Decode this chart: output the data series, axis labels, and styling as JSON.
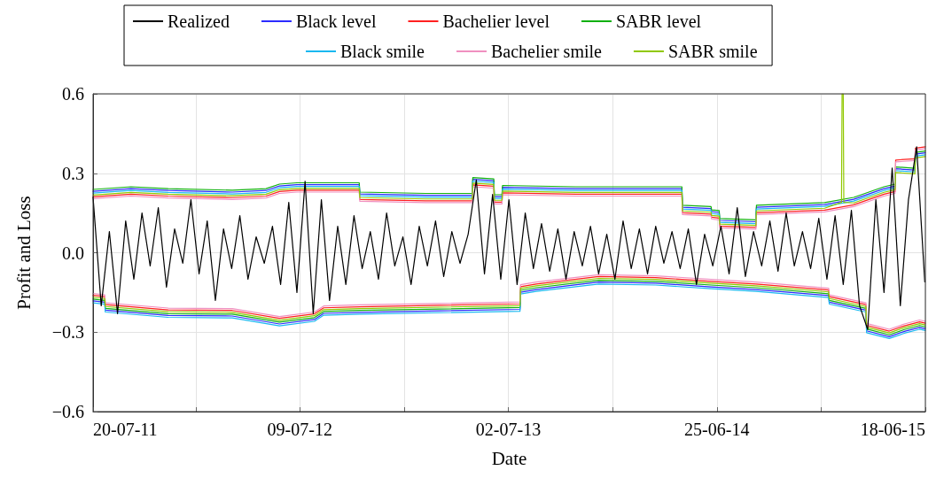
{
  "chart_data": {
    "type": "line",
    "xlabel": "Date",
    "ylabel": "Profit and Loss",
    "legend": "top",
    "grid": true,
    "marker": "none",
    "line_style": "solid",
    "xlim": [
      "2011-07-20",
      "2015-06-18"
    ],
    "xticks": [
      {
        "value": "2011-07-20",
        "label": "20-07-11"
      },
      {
        "value": "2012-01-13",
        "label": null
      },
      {
        "value": "2012-07-09",
        "label": "09-07-12"
      },
      {
        "value": "2013-01-04",
        "label": null
      },
      {
        "value": "2013-07-02",
        "label": "02-07-13"
      },
      {
        "value": "2013-12-28",
        "label": null
      },
      {
        "value": "2014-06-25",
        "label": "25-06-14"
      },
      {
        "value": "2014-12-21",
        "label": null
      },
      {
        "value": "2015-06-18",
        "label": "18-06-15"
      }
    ],
    "ylim": [
      -0.6,
      0.6
    ],
    "yticks": [
      {
        "value": -0.6,
        "label": "−0.6"
      },
      {
        "value": -0.3,
        "label": "−0.3"
      },
      {
        "value": 0,
        "label": "0.0"
      },
      {
        "value": 0.3,
        "label": "0.3"
      },
      {
        "value": 0.6,
        "label": "0.6"
      }
    ],
    "x": [
      "2011-07-20",
      "2011-09-23",
      "2011-11-26",
      "2012-03-15",
      "2012-05-12",
      "2012-06-04",
      "2012-07-04",
      "2012-10-03",
      "2012-10-19",
      "2012-10-20",
      "2013-02-10",
      "2013-05-01",
      "2013-05-02",
      "2013-06-07",
      "2013-06-08",
      "2013-06-21",
      "2013-06-22",
      "2013-10-26",
      "2014-03-12",
      "2014-04-26",
      "2014-04-27",
      "2014-06-15",
      "2014-06-16",
      "2014-06-29",
      "2014-06-30",
      "2014-08-31",
      "2014-09-01",
      "2014-12-27",
      "2015-02-15",
      "2015-04-08",
      "2015-04-27",
      "2015-04-28",
      "2015-05-31",
      "2015-06-01",
      "2015-06-18"
    ],
    "series": [
      {
        "name": "Realized",
        "color": "#000000",
        "x": [
          "2011-07-20",
          "2011-08-03",
          "2011-08-17",
          "2011-08-31",
          "2011-09-14",
          "2011-09-28",
          "2011-10-12",
          "2011-10-26",
          "2011-11-09",
          "2011-11-23",
          "2011-12-07",
          "2011-12-21",
          "2012-01-04",
          "2012-01-18",
          "2012-02-01",
          "2012-02-15",
          "2012-02-29",
          "2012-03-14",
          "2012-03-28",
          "2012-04-11",
          "2012-04-25",
          "2012-05-09",
          "2012-05-23",
          "2012-06-06",
          "2012-06-20",
          "2012-07-04",
          "2012-07-18",
          "2012-08-01",
          "2012-08-15",
          "2012-08-29",
          "2012-09-12",
          "2012-09-26",
          "2012-10-10",
          "2012-10-24",
          "2012-11-07",
          "2012-11-21",
          "2012-12-05",
          "2012-12-19",
          "2013-01-02",
          "2013-01-16",
          "2013-01-30",
          "2013-02-13",
          "2013-02-27",
          "2013-03-13",
          "2013-03-27",
          "2013-04-10",
          "2013-04-24",
          "2013-05-08",
          "2013-05-22",
          "2013-06-05",
          "2013-06-19",
          "2013-07-03",
          "2013-07-17",
          "2013-07-31",
          "2013-08-14",
          "2013-08-28",
          "2013-09-11",
          "2013-09-25",
          "2013-10-09",
          "2013-10-23",
          "2013-11-06",
          "2013-11-20",
          "2013-12-04",
          "2013-12-18",
          "2014-01-01",
          "2014-01-15",
          "2014-01-29",
          "2014-02-12",
          "2014-02-26",
          "2014-03-12",
          "2014-03-26",
          "2014-04-09",
          "2014-04-23",
          "2014-05-07",
          "2014-05-21",
          "2014-06-04",
          "2014-06-18",
          "2014-07-02",
          "2014-07-16",
          "2014-07-30",
          "2014-08-13",
          "2014-08-27",
          "2014-09-10",
          "2014-09-24",
          "2014-10-08",
          "2014-10-22",
          "2014-11-05",
          "2014-11-19",
          "2014-12-03",
          "2014-12-17",
          "2014-12-31",
          "2015-01-14",
          "2015-01-28",
          "2015-02-11",
          "2015-02-25",
          "2015-03-11",
          "2015-03-25",
          "2015-04-08",
          "2015-04-22",
          "2015-05-06",
          "2015-05-20",
          "2015-06-03",
          "2015-06-17"
        ],
        "values": [
          0.21,
          -0.2,
          0.08,
          -0.23,
          0.12,
          -0.1,
          0.15,
          -0.05,
          0.17,
          -0.13,
          0.09,
          -0.04,
          0.2,
          -0.08,
          0.12,
          -0.18,
          0.09,
          -0.06,
          0.14,
          -0.1,
          0.06,
          -0.04,
          0.1,
          -0.12,
          0.19,
          -0.15,
          0.27,
          -0.23,
          0.2,
          -0.18,
          0.1,
          -0.12,
          0.14,
          -0.06,
          0.08,
          -0.1,
          0.15,
          -0.05,
          0.06,
          -0.12,
          0.1,
          -0.05,
          0.12,
          -0.09,
          0.08,
          -0.04,
          0.07,
          0.275,
          -0.08,
          0.22,
          -0.1,
          0.2,
          -0.12,
          0.15,
          -0.06,
          0.11,
          -0.07,
          0.09,
          -0.1,
          0.08,
          -0.05,
          0.1,
          -0.08,
          0.07,
          -0.1,
          0.12,
          -0.06,
          0.09,
          -0.08,
          0.1,
          -0.04,
          0.08,
          -0.06,
          0.09,
          -0.12,
          0.07,
          -0.05,
          0.1,
          -0.08,
          0.17,
          -0.09,
          0.08,
          -0.05,
          0.12,
          -0.07,
          0.15,
          -0.05,
          0.08,
          -0.06,
          0.13,
          -0.1,
          0.14,
          -0.12,
          0.16,
          -0.2,
          -0.29,
          0.2,
          -0.15,
          0.32,
          -0.2,
          0.2,
          0.4,
          -0.11
        ]
      },
      {
        "name": "Black level",
        "color": "#2b2bff",
        "values": [
          0.232,
          0.242,
          0.235,
          0.229,
          0.235,
          0.252,
          0.257,
          0.257,
          0.257,
          0.222,
          0.217,
          0.217,
          0.277,
          0.272,
          0.212,
          0.212,
          0.247,
          0.242,
          0.242,
          0.242,
          0.172,
          0.167,
          0.155,
          0.152,
          0.122,
          0.117,
          0.172,
          0.182,
          0.202,
          0.242,
          0.252,
          0.317,
          0.312,
          0.372,
          0.377
        ]
      },
      {
        "name": "Bachelier level",
        "color": "#ff2020",
        "values": [
          0.211,
          0.221,
          0.214,
          0.208,
          0.214,
          0.231,
          0.236,
          0.236,
          0.236,
          0.201,
          0.196,
          0.196,
          0.256,
          0.251,
          0.191,
          0.191,
          0.226,
          0.221,
          0.221,
          0.221,
          0.151,
          0.146,
          0.134,
          0.131,
          0.101,
          0.096,
          0.151,
          0.161,
          0.181,
          0.221,
          0.231,
          0.35,
          0.355,
          0.395,
          0.4
        ]
      },
      {
        "name": "SABR level",
        "color": "#10b010",
        "values": [
          0.239,
          0.249,
          0.242,
          0.236,
          0.242,
          0.259,
          0.264,
          0.264,
          0.264,
          0.229,
          0.224,
          0.224,
          0.284,
          0.279,
          0.219,
          0.219,
          0.254,
          0.249,
          0.249,
          0.249,
          0.179,
          0.174,
          0.162,
          0.159,
          0.129,
          0.124,
          0.179,
          0.189,
          0.209,
          0.249,
          0.259,
          0.324,
          0.319,
          0.379,
          0.384
        ]
      },
      {
        "name": "Black smile",
        "color": "#1ab8f0",
        "values": [
          0.225,
          0.235,
          0.228,
          0.222,
          0.228,
          0.245,
          0.25,
          0.25,
          0.25,
          0.215,
          0.21,
          0.21,
          0.27,
          0.265,
          0.205,
          0.205,
          0.24,
          0.235,
          0.235,
          0.235,
          0.165,
          0.16,
          0.148,
          0.145,
          0.115,
          0.11,
          0.165,
          0.175,
          0.195,
          0.235,
          0.245,
          0.31,
          0.305,
          0.365,
          0.37
        ]
      },
      {
        "name": "Bachelier smile",
        "color": "#f090c0",
        "values": [
          0.204,
          0.214,
          0.207,
          0.201,
          0.207,
          0.224,
          0.229,
          0.229,
          0.229,
          0.194,
          0.189,
          0.189,
          0.249,
          0.244,
          0.184,
          0.184,
          0.219,
          0.214,
          0.214,
          0.214,
          0.144,
          0.139,
          0.127,
          0.124,
          0.094,
          0.089,
          0.144,
          0.154,
          0.174,
          0.214,
          0.224,
          0.343,
          0.348,
          0.388,
          0.393
        ]
      },
      {
        "name": "SABR smile",
        "color": "#90c800",
        "x": [
          "2011-07-20",
          "2011-09-23",
          "2011-11-26",
          "2012-03-15",
          "2012-05-12",
          "2012-06-04",
          "2012-07-04",
          "2012-10-03",
          "2012-10-19",
          "2012-10-20",
          "2013-02-10",
          "2013-05-01",
          "2013-05-02",
          "2013-06-07",
          "2013-06-08",
          "2013-06-21",
          "2013-06-22",
          "2013-10-26",
          "2014-03-12",
          "2014-04-26",
          "2014-04-27",
          "2014-06-15",
          "2014-06-16",
          "2014-06-29",
          "2014-06-30",
          "2014-08-31",
          "2014-09-01",
          "2014-12-27",
          "2015-01-25",
          "2015-01-26",
          "2015-01-28",
          "2015-01-29",
          "2015-02-15",
          "2015-04-08",
          "2015-04-27",
          "2015-04-28",
          "2015-05-31",
          "2015-06-01",
          "2015-06-18"
        ],
        "values": [
          0.218,
          0.228,
          0.221,
          0.215,
          0.221,
          0.238,
          0.243,
          0.243,
          0.243,
          0.208,
          0.203,
          0.203,
          0.263,
          0.258,
          0.198,
          0.198,
          0.233,
          0.228,
          0.228,
          0.228,
          0.158,
          0.153,
          0.141,
          0.138,
          0.108,
          0.103,
          0.158,
          0.168,
          0.19,
          0.6,
          0.6,
          0.19,
          0.188,
          0.228,
          0.238,
          0.303,
          0.298,
          0.358,
          0.363
        ]
      },
      {
        "color": "#2b2bff",
        "x": [
          "2011-07-20",
          "2011-08-09",
          "2011-08-10",
          "2011-11-26",
          "2012-03-15",
          "2012-06-04",
          "2012-08-03",
          "2012-08-19",
          "2012-10-20",
          "2013-07-22",
          "2013-07-23",
          "2013-08-19",
          "2013-12-04",
          "2014-03-12",
          "2014-06-15",
          "2014-08-31",
          "2015-01-03",
          "2015-01-04",
          "2015-03-08",
          "2015-03-09",
          "2015-04-17",
          "2015-05-13",
          "2015-06-08",
          "2015-06-18"
        ],
        "values": [
          -0.182,
          -0.187,
          -0.217,
          -0.237,
          -0.239,
          -0.269,
          -0.252,
          -0.229,
          -0.225,
          -0.214,
          -0.149,
          -0.139,
          -0.111,
          -0.115,
          -0.129,
          -0.139,
          -0.162,
          -0.187,
          -0.217,
          -0.295,
          -0.317,
          -0.297,
          -0.282,
          -0.287
        ]
      },
      {
        "color": "#ff2020",
        "x": [
          "2011-07-20",
          "2011-08-09",
          "2011-08-10",
          "2011-11-26",
          "2012-03-15",
          "2012-06-04",
          "2012-08-03",
          "2012-08-19",
          "2012-10-20",
          "2013-07-22",
          "2013-07-23",
          "2013-08-19",
          "2013-12-04",
          "2014-03-12",
          "2014-06-15",
          "2014-08-31",
          "2015-01-03",
          "2015-01-04",
          "2015-03-08",
          "2015-03-09",
          "2015-04-17",
          "2015-05-13",
          "2015-06-08",
          "2015-06-18"
        ],
        "values": [
          -0.161,
          -0.166,
          -0.196,
          -0.216,
          -0.218,
          -0.248,
          -0.231,
          -0.208,
          -0.204,
          -0.193,
          -0.128,
          -0.118,
          -0.09,
          -0.094,
          -0.108,
          -0.118,
          -0.141,
          -0.166,
          -0.196,
          -0.274,
          -0.296,
          -0.276,
          -0.261,
          -0.266
        ]
      },
      {
        "color": "#10b010",
        "x": [
          "2011-07-20",
          "2011-08-09",
          "2011-08-10",
          "2011-11-26",
          "2012-03-15",
          "2012-06-04",
          "2012-08-03",
          "2012-08-19",
          "2012-10-20",
          "2013-07-22",
          "2013-07-23",
          "2013-08-19",
          "2013-12-04",
          "2014-03-12",
          "2014-06-15",
          "2014-08-31",
          "2015-01-03",
          "2015-01-04",
          "2015-03-08",
          "2015-03-09",
          "2015-04-17",
          "2015-05-13",
          "2015-06-08",
          "2015-06-18"
        ],
        "values": [
          -0.175,
          -0.18,
          -0.21,
          -0.23,
          -0.232,
          -0.262,
          -0.245,
          -0.222,
          -0.218,
          -0.207,
          -0.142,
          -0.132,
          -0.104,
          -0.108,
          -0.122,
          -0.132,
          -0.155,
          -0.18,
          -0.21,
          -0.288,
          -0.31,
          -0.29,
          -0.275,
          -0.28
        ]
      },
      {
        "color": "#1ab8f0",
        "x": [
          "2011-07-20",
          "2011-08-09",
          "2011-08-10",
          "2011-11-26",
          "2012-03-15",
          "2012-06-04",
          "2012-08-03",
          "2012-08-19",
          "2012-10-20",
          "2013-07-22",
          "2013-07-23",
          "2013-08-19",
          "2013-12-04",
          "2014-03-12",
          "2014-06-15",
          "2014-08-31",
          "2015-01-03",
          "2015-01-04",
          "2015-03-08",
          "2015-03-09",
          "2015-04-17",
          "2015-05-13",
          "2015-06-08",
          "2015-06-18"
        ],
        "values": [
          -0.189,
          -0.194,
          -0.224,
          -0.244,
          -0.246,
          -0.276,
          -0.259,
          -0.236,
          -0.232,
          -0.221,
          -0.156,
          -0.146,
          -0.118,
          -0.122,
          -0.136,
          -0.146,
          -0.169,
          -0.194,
          -0.224,
          -0.302,
          -0.324,
          -0.304,
          -0.289,
          -0.294
        ]
      },
      {
        "color": "#f090c0",
        "x": [
          "2011-07-20",
          "2011-08-09",
          "2011-08-10",
          "2011-11-26",
          "2012-03-15",
          "2012-06-04",
          "2012-08-03",
          "2012-08-19",
          "2012-10-20",
          "2013-07-22",
          "2013-07-23",
          "2013-08-19",
          "2013-12-04",
          "2014-03-12",
          "2014-06-15",
          "2014-08-31",
          "2015-01-03",
          "2015-01-04",
          "2015-03-08",
          "2015-03-09",
          "2015-04-17",
          "2015-05-13",
          "2015-06-08",
          "2015-06-18"
        ],
        "values": [
          -0.154,
          -0.159,
          -0.189,
          -0.209,
          -0.211,
          -0.241,
          -0.224,
          -0.201,
          -0.197,
          -0.186,
          -0.121,
          -0.111,
          -0.083,
          -0.087,
          -0.101,
          -0.111,
          -0.134,
          -0.159,
          -0.189,
          -0.267,
          -0.289,
          -0.269,
          -0.254,
          -0.259
        ]
      },
      {
        "color": "#90c800",
        "x": [
          "2011-07-20",
          "2011-08-09",
          "2011-08-10",
          "2011-11-26",
          "2012-03-15",
          "2012-06-04",
          "2012-08-03",
          "2012-08-19",
          "2012-10-20",
          "2013-07-22",
          "2013-07-23",
          "2013-08-19",
          "2013-12-04",
          "2014-03-12",
          "2014-06-15",
          "2014-08-31",
          "2015-01-03",
          "2015-01-04",
          "2015-03-08",
          "2015-03-09",
          "2015-04-17",
          "2015-05-13",
          "2015-06-08",
          "2015-06-18"
        ],
        "values": [
          -0.168,
          -0.173,
          -0.203,
          -0.223,
          -0.225,
          -0.255,
          -0.238,
          -0.215,
          -0.211,
          -0.2,
          -0.135,
          -0.125,
          -0.097,
          -0.101,
          -0.115,
          -0.125,
          -0.148,
          -0.173,
          -0.203,
          -0.281,
          -0.303,
          -0.283,
          -0.268,
          -0.273
        ]
      }
    ]
  }
}
